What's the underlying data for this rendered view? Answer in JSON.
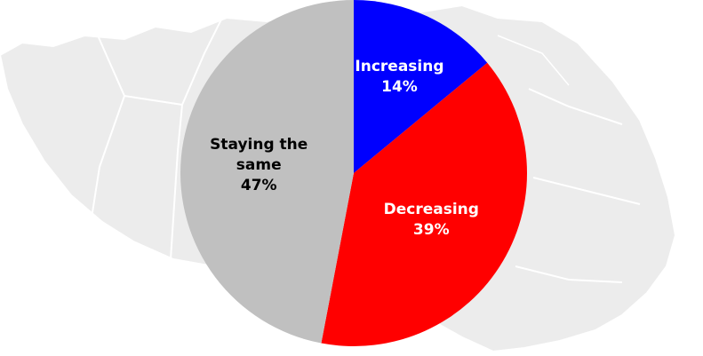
{
  "chart_data": {
    "type": "pie",
    "slices": [
      {
        "label": "Increasing",
        "value": 14,
        "display": "14%",
        "color": "#0000ff",
        "text_color": "#ffffff"
      },
      {
        "label": "Decreasing",
        "value": 39,
        "display": "39%",
        "color": "#ff0000",
        "text_color": "#ffffff"
      },
      {
        "label": "Staying the same",
        "value": 47,
        "display": "47%",
        "color": "#c0c0c0",
        "text_color": "#000000"
      }
    ],
    "start": "12 o'clock",
    "direction": "clockwise",
    "legend": "none",
    "background": "map of Canada (light grey)"
  }
}
